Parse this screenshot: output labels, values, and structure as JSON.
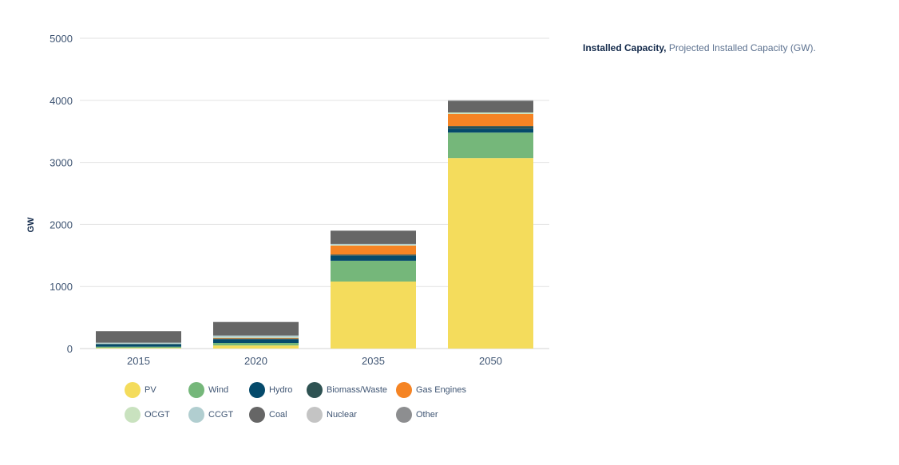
{
  "caption": {
    "bold": "Installed Capacity,",
    "text": " Projected Installed Capacity (GW)."
  },
  "chart_data": {
    "type": "bar",
    "stacked": true,
    "title": "Installed Capacity, Projected Installed Capacity (GW).",
    "xlabel": "",
    "ylabel": "GW",
    "ylim": [
      0,
      5000
    ],
    "yticks": [
      0,
      1000,
      2000,
      3000,
      4000,
      5000
    ],
    "grid": true,
    "legend_position": "bottom",
    "categories": [
      "2015",
      "2020",
      "2035",
      "2050"
    ],
    "series": [
      {
        "name": "PV",
        "color": "#f4dc5c",
        "values": [
          10,
          50,
          1080,
          3070
        ]
      },
      {
        "name": "Wind",
        "color": "#75b77a",
        "values": [
          20,
          40,
          335,
          410
        ]
      },
      {
        "name": "Hydro",
        "color": "#054a6b",
        "values": [
          40,
          60,
          80,
          65
        ]
      },
      {
        "name": "Biomass/Waste",
        "color": "#2e5252",
        "values": [
          5,
          10,
          20,
          40
        ]
      },
      {
        "name": "Gas Engines",
        "color": "#f58424",
        "values": [
          0,
          10,
          145,
          195
        ]
      },
      {
        "name": "OCGT",
        "color": "#c9e2bf",
        "values": [
          5,
          10,
          10,
          25
        ]
      },
      {
        "name": "CCGT",
        "color": "#b1ced0",
        "values": [
          15,
          30,
          15,
          0
        ]
      },
      {
        "name": "Coal",
        "color": "#666666",
        "values": [
          185,
          215,
          215,
          180
        ]
      },
      {
        "name": "Nuclear",
        "color": "#c4c4c4",
        "values": [
          0,
          0,
          0,
          0
        ]
      },
      {
        "name": "Other",
        "color": "#8d8e90",
        "values": [
          0,
          5,
          0,
          15
        ]
      }
    ]
  }
}
